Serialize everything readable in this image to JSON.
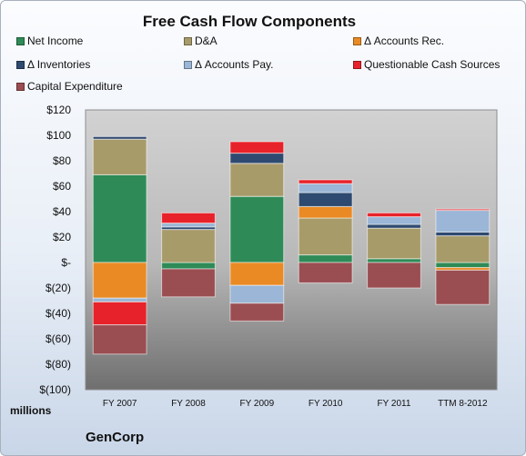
{
  "title": "Free Cash Flow Components",
  "units_label": "millions",
  "company": "GenCorp",
  "colors": {
    "Net Income": "#2e8b57",
    "D&A": "#a89b6a",
    "Δ Accounts Rec.": "#ea8a24",
    "Δ Inventories": "#2f4a70",
    "Δ Accounts Pay.": "#9bb6d6",
    "Questionable Cash Sources": "#e8222a",
    "Capital Expenditure": "#9a4e52"
  },
  "chart_data": {
    "type": "bar",
    "stacked": true,
    "title": "Free Cash Flow Components",
    "ylabel": "millions",
    "ylim": [
      -100,
      120
    ],
    "ytick_labels": [
      "$(100)",
      "$(80)",
      "$(60)",
      "$(40)",
      "$(20)",
      "$-",
      "$20",
      "$40",
      "$60",
      "$80",
      "$100",
      "$120"
    ],
    "grid": false,
    "legend_placement": "top",
    "categories": [
      "FY 2007",
      "FY 2008",
      "FY 2009",
      "FY 2010",
      "FY 2011",
      "TTM 8-2012"
    ],
    "series": [
      {
        "name": "Net Income",
        "values": [
          69,
          -5,
          52,
          6,
          3,
          -4
        ]
      },
      {
        "name": "D&A",
        "values": [
          28,
          26,
          26,
          29,
          24,
          21
        ]
      },
      {
        "name": "Δ Accounts Rec.",
        "values": [
          -28,
          0,
          -18,
          9,
          0,
          -2
        ]
      },
      {
        "name": "Δ Inventories",
        "values": [
          2,
          2,
          8,
          11,
          3,
          3
        ]
      },
      {
        "name": "Δ Accounts Pay.",
        "values": [
          -3,
          3,
          -14,
          7,
          6,
          17
        ]
      },
      {
        "name": "Questionable Cash Sources",
        "values": [
          -18,
          8,
          9,
          3,
          3,
          1
        ]
      },
      {
        "name": "Capital Expenditure",
        "values": [
          -23,
          -22,
          -14,
          -16,
          -20,
          -27
        ]
      }
    ]
  }
}
